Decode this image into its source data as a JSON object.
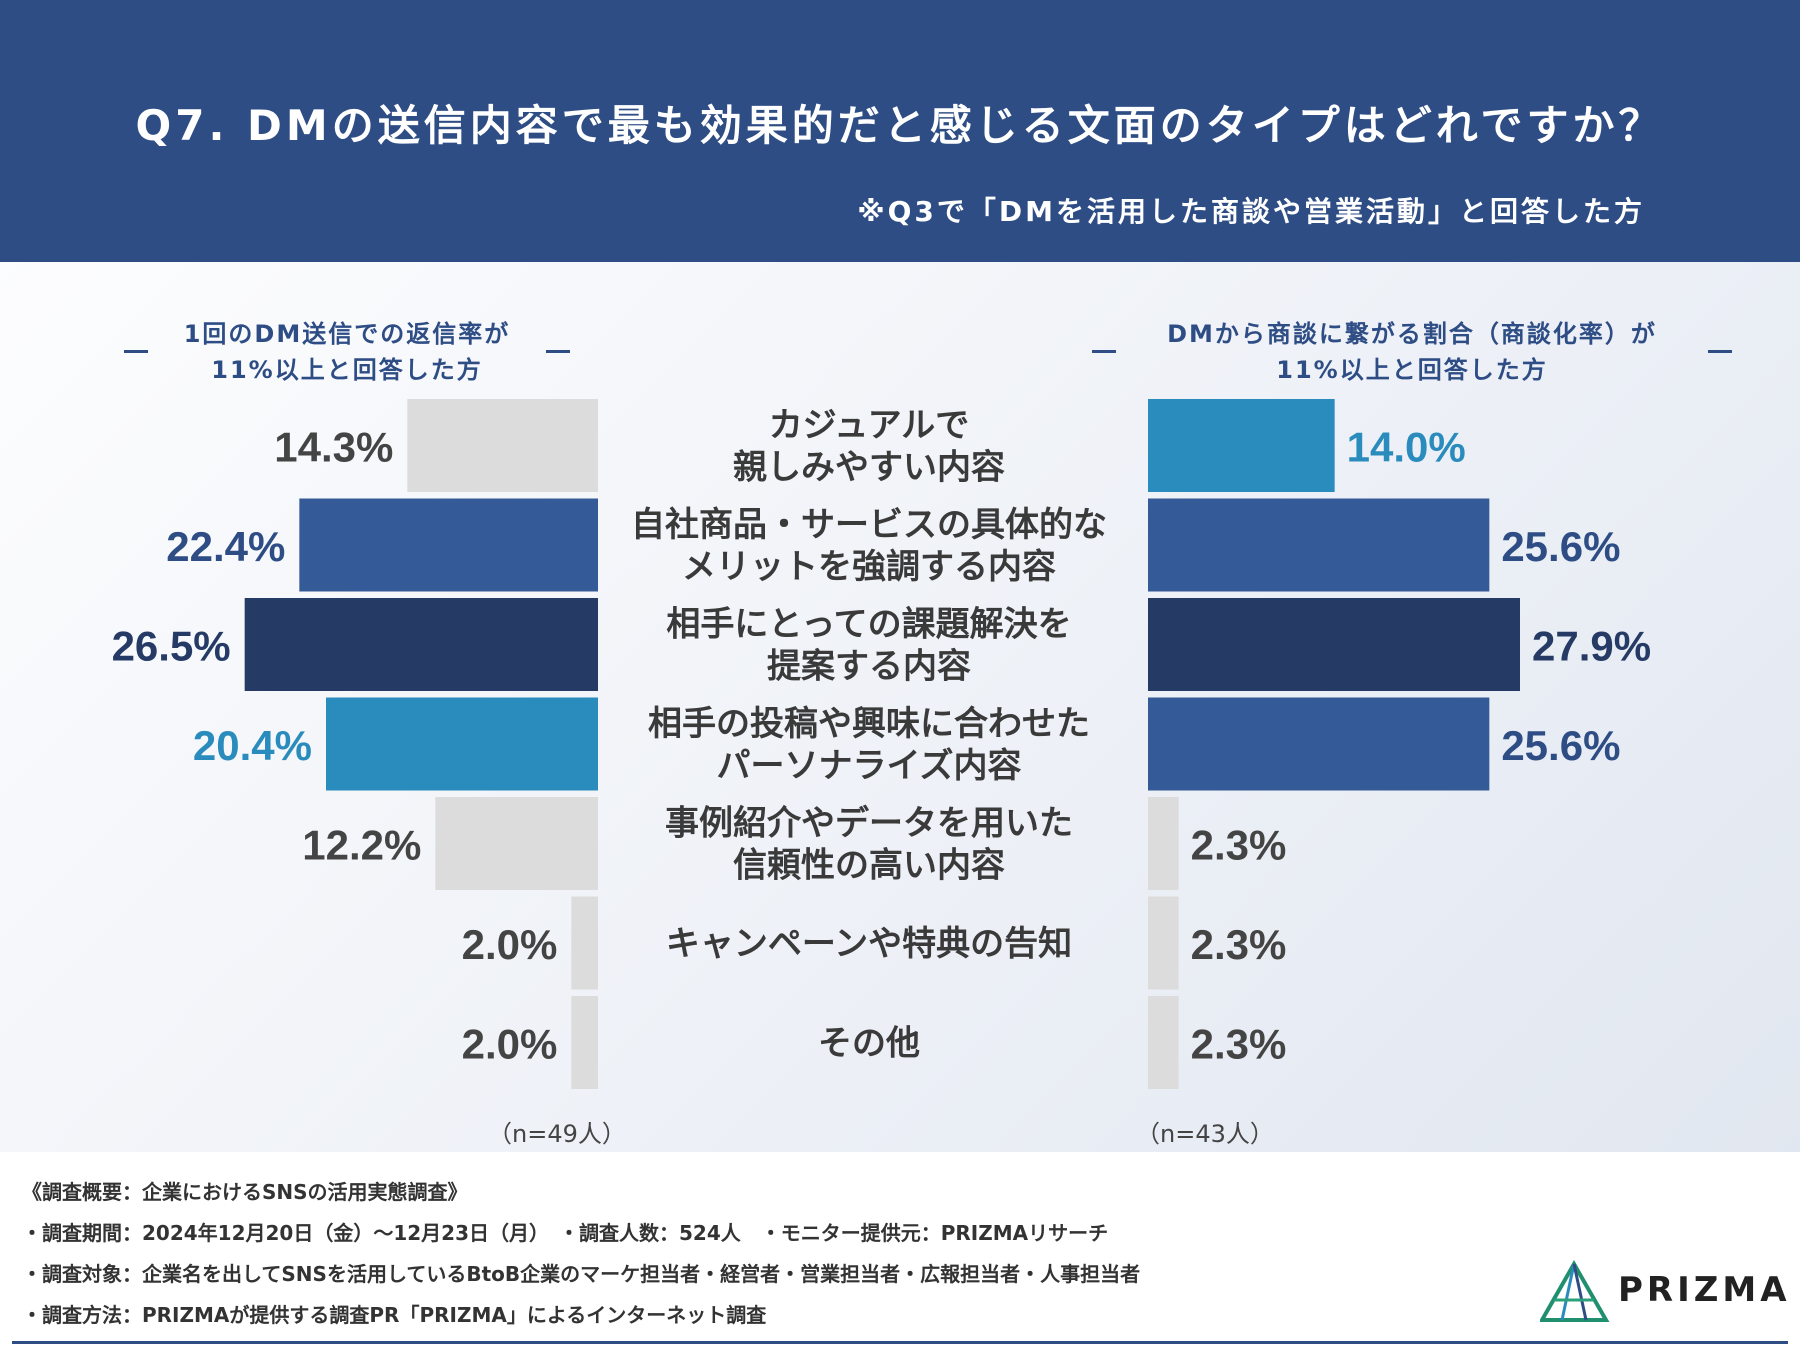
{
  "header": {
    "title": "Q7. DMの送信内容で最も効果的だと感じる文面のタイプはどれですか？",
    "subtitle": "※Q3で「DMを活用した商談や営業活動」と回答した方"
  },
  "chart_data": {
    "type": "bar",
    "orientation": "horizontal-butterfly",
    "title": "Q7. DMの送信内容で最も効果的だと感じる文面のタイプはどれですか？",
    "categories": [
      [
        "カジュアルで",
        "親しみやすい内容"
      ],
      [
        "自社商品・サービスの具体的な",
        "メリットを強調する内容"
      ],
      [
        "相手にとっての課題解決を",
        "提案する内容"
      ],
      [
        "相手の投稿や興味に合わせた",
        "パーソナライズ内容"
      ],
      [
        "事例紹介やデータを用いた",
        "信頼性の高い内容"
      ],
      [
        "キャンペーンや特典の告知"
      ],
      [
        "その他"
      ]
    ],
    "series": [
      {
        "name": "1回のDM送信での返信率が11%以上と回答した方",
        "heading_lines": [
          "1回のDM送信での返信率が",
          "11%以上と回答した方"
        ],
        "sample": "（n=49人）",
        "values": [
          14.3,
          22.4,
          26.5,
          20.4,
          12.2,
          2.0,
          2.0
        ],
        "labels": [
          "14.3%",
          "22.4%",
          "26.5%",
          "20.4%",
          "12.2%",
          "2.0%",
          "2.0%"
        ],
        "bar_colors": [
          "#dcdcdc",
          "#345a97",
          "#253b66",
          "#2a8cbd",
          "#dcdcdc",
          "#dcdcdc",
          "#dcdcdc"
        ],
        "label_colors": [
          "#444444",
          "#2e4d85",
          "#253b66",
          "#2a8cbd",
          "#444444",
          "#444444",
          "#444444"
        ]
      },
      {
        "name": "DMから商談に繋がる割合（商談化率）が11%以上と回答した方",
        "heading_lines": [
          "DMから商談に繋がる割合（商談化率）が",
          "11%以上と回答した方"
        ],
        "sample": "（n=43人）",
        "values": [
          14.0,
          25.6,
          27.9,
          25.6,
          2.3,
          2.3,
          2.3
        ],
        "labels": [
          "14.0%",
          "25.6%",
          "27.9%",
          "25.6%",
          "2.3%",
          "2.3%",
          "2.3%"
        ],
        "bar_colors": [
          "#2a8cbd",
          "#345a97",
          "#253b66",
          "#345a97",
          "#dcdcdc",
          "#dcdcdc",
          "#dcdcdc"
        ],
        "label_colors": [
          "#2a8cbd",
          "#2e4d85",
          "#253b66",
          "#2e4d85",
          "#444444",
          "#444444",
          "#444444"
        ]
      }
    ],
    "xlim": [
      0,
      30
    ]
  },
  "survey": {
    "lines": [
      "《調査概要：企業におけるSNSの活用実態調査》",
      "・調査期間：2024年12月20日（金）～12月23日（月）　・調査人数：524人　・モニター提供元：PRIZMAリサーチ",
      "・調査対象：企業名を出してSNSを活用しているBtoB企業のマーケ担当者・経営者・営業担当者・広報担当者・人事担当者",
      "・調査方法：PRIZMAが提供する調査PR「PRIZMA」によるインターネット調査"
    ]
  },
  "logo": {
    "text": "PRIZMA"
  },
  "colors": {
    "brand": "#2e4d85",
    "dark": "#253b66",
    "accent": "#2a8cbd",
    "neutral": "#dcdcdc"
  }
}
